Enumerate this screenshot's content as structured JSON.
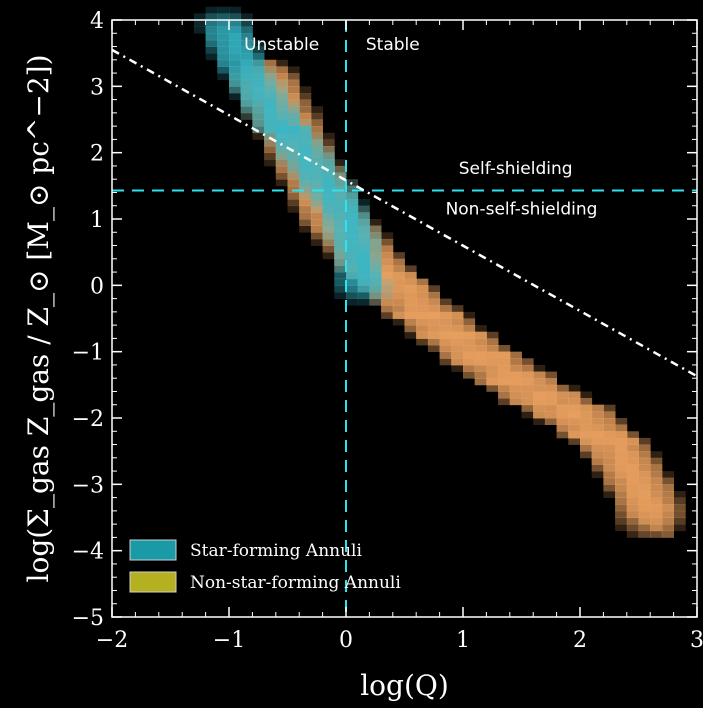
{
  "chart_data": {
    "type": "heatmap",
    "xlabel": "log(Q)",
    "ylabel": "log(Σ_gas Z_gas / Z_⊙ [M_⊙ pc^−2])",
    "xlim": [
      -2,
      3
    ],
    "ylim": [
      -5,
      4
    ],
    "x_ticks": [
      "−2",
      "−1",
      "0",
      "1",
      "2",
      "3"
    ],
    "x_tick_values": [
      -2,
      -1,
      0,
      1,
      2,
      3
    ],
    "y_ticks": [
      "4",
      "3",
      "2",
      "1",
      "0",
      "−1",
      "−2",
      "−3",
      "−4",
      "−5"
    ],
    "y_tick_values": [
      4,
      3,
      2,
      1,
      0,
      -1,
      -2,
      -3,
      -4,
      -5
    ],
    "grid": false,
    "legend_position": "bottom-left",
    "legend": [
      {
        "label": "Star-forming Annuli",
        "color": "#1a9aa6"
      },
      {
        "label": "Non-star-forming Annuli",
        "color": "#b5b020"
      }
    ],
    "reference_lines": [
      {
        "kind": "vertical",
        "x": 0,
        "style": "dashed",
        "color": "#2ee3ef"
      },
      {
        "kind": "horizontal",
        "y": 1.43,
        "style": "dashed",
        "color": "#2ee3ef"
      },
      {
        "kind": "line",
        "points": [
          [
            -2,
            3.55
          ],
          [
            3,
            -1.37
          ]
        ],
        "style": "dash-dot",
        "color": "#ffffff"
      }
    ],
    "annotations": [
      {
        "text": "Unstable",
        "x": -0.55,
        "y": 3.55
      },
      {
        "text": "Stable",
        "x": 0.4,
        "y": 3.55
      },
      {
        "text": "Self-shielding",
        "x": 1.45,
        "y": 1.68
      },
      {
        "text": "Non-self-shielding",
        "x": 1.5,
        "y": 1.07
      }
    ],
    "series": [
      {
        "name": "Non-star-forming Annuli",
        "color": "#e8a060",
        "density_ridge": [
          [
            -0.75,
            3.1
          ],
          [
            -0.5,
            2.2
          ],
          [
            -0.2,
            1.1
          ],
          [
            0.1,
            0.4
          ],
          [
            0.5,
            -0.3
          ],
          [
            1.0,
            -1.0
          ],
          [
            1.5,
            -1.6
          ],
          [
            2.0,
            -2.1
          ],
          [
            2.3,
            -2.6
          ],
          [
            2.5,
            -3.2
          ],
          [
            2.6,
            -3.7
          ]
        ]
      },
      {
        "name": "Star-forming Annuli",
        "color": "#38b8c8",
        "density_ridge": [
          [
            -1.1,
            3.9
          ],
          [
            -0.95,
            3.3
          ],
          [
            -0.7,
            2.6
          ],
          [
            -0.45,
            2.0
          ],
          [
            -0.25,
            1.5
          ],
          [
            -0.05,
            1.0
          ],
          [
            0.05,
            0.4
          ],
          [
            0.1,
            -0.2
          ]
        ]
      }
    ]
  }
}
